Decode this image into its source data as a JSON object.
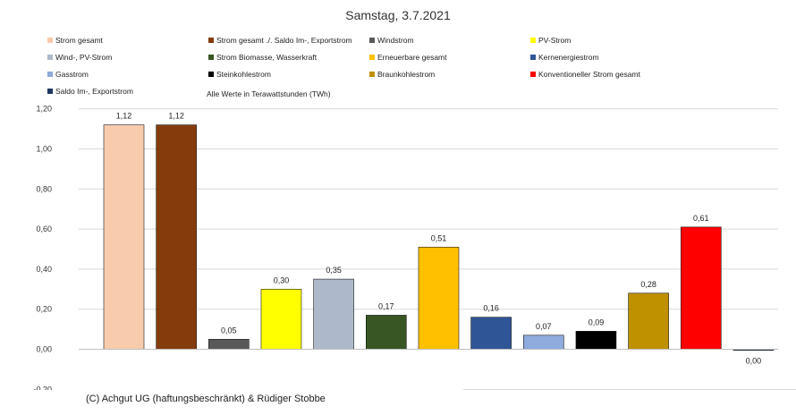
{
  "chart_data": {
    "type": "bar",
    "title": "Samstag, 3.7.2021",
    "note": "Alle Werte in Terawattstunden (TWh)",
    "ylim": [
      -0.2,
      1.2
    ],
    "yticks": [
      "-0,20",
      "0,00",
      "0,20",
      "0,40",
      "0,60",
      "0,80",
      "1,00",
      "1,20"
    ],
    "grid": true,
    "legend_position": "top",
    "categories": [
      "Strom gesamt",
      "Strom gesamt ./. Saldo Im-, Exportstrom",
      "Windstrom",
      "PV-Strom",
      "Wind-, PV-Strom",
      "Strom Biomasse, Wasserkraft",
      "Erneuerbare gesamt",
      "Kernenergiestrom",
      "Gasstrom",
      "Steinkohlestrom",
      "Braunkohlestrom",
      "Konventioneller Strom gesamt",
      "Saldo Im-, Exportstrom"
    ],
    "values": [
      1.12,
      1.12,
      0.05,
      0.3,
      0.35,
      0.17,
      0.51,
      0.16,
      0.07,
      0.09,
      0.28,
      0.61,
      0.0
    ],
    "value_labels": [
      "1,12",
      "1,12",
      "0,05",
      "0,30",
      "0,35",
      "0,17",
      "0,51",
      "0,16",
      "0,07",
      "0,09",
      "0,28",
      "0,61",
      "0,00"
    ],
    "colors": [
      "#f8cbad",
      "#843c0c",
      "#595959",
      "#ffff00",
      "#adb9ca",
      "#375623",
      "#ffc000",
      "#2f5597",
      "#8faadc",
      "#000000",
      "#bf9000",
      "#ff0000",
      "#1f3864"
    ]
  },
  "footer": "(C) Achgut UG (haftungsbeschränkt) & Rüdiger Stobbe"
}
